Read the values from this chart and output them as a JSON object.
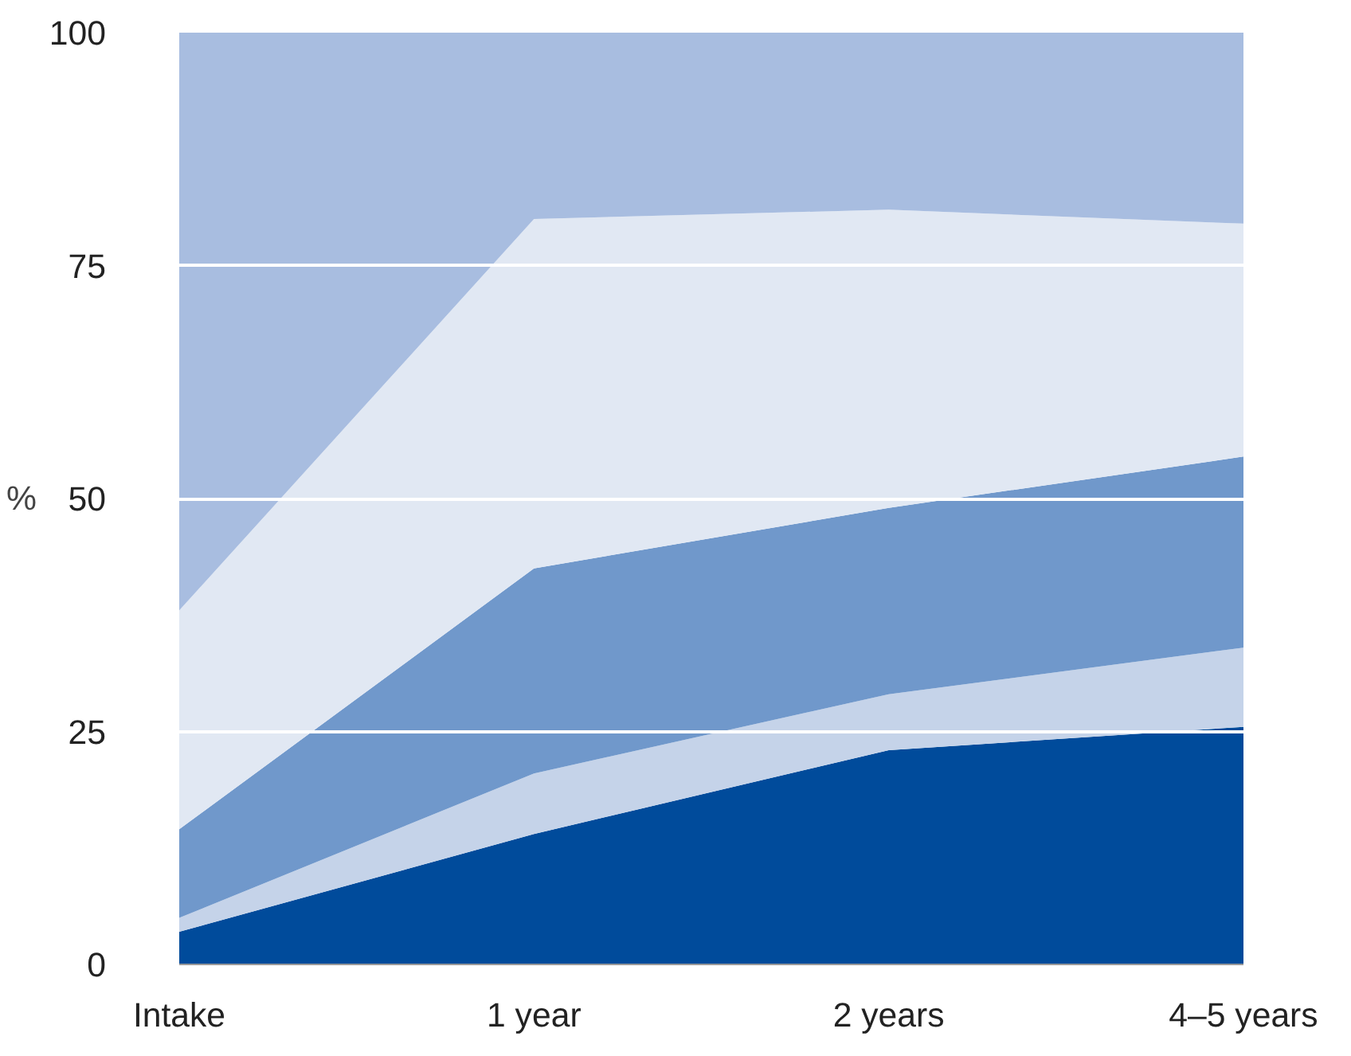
{
  "chart_data": {
    "type": "area",
    "stacked": true,
    "ylabel": "%",
    "categories": [
      "Intake",
      "1 year",
      "2 years",
      "4–5 years"
    ],
    "series": [
      {
        "color": "#004b9b",
        "values": [
          3.5,
          14,
          23,
          25.5
        ]
      },
      {
        "color": "#c5d3e9",
        "values": [
          1.5,
          6.5,
          6,
          8.5
        ]
      },
      {
        "color": "#7098cb",
        "values": [
          9.5,
          22,
          20,
          20.5
        ]
      },
      {
        "color": "#e1e8f3",
        "values": [
          23.5,
          37.5,
          32,
          25
        ]
      },
      {
        "color": "#a8bde0",
        "values": [
          62,
          20,
          19,
          20.5
        ]
      }
    ],
    "ylim": [
      0,
      100
    ],
    "yticks": [
      0,
      25,
      50,
      75,
      100
    ],
    "grid": "y"
  }
}
